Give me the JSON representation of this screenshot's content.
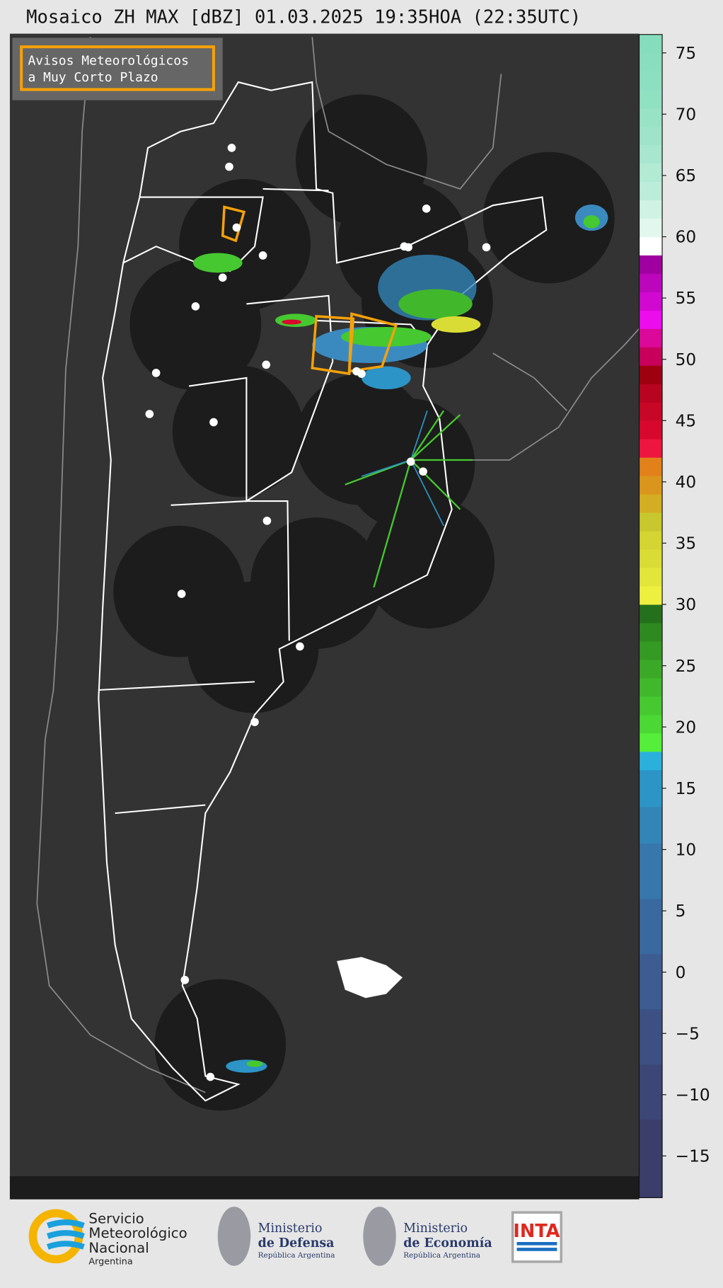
{
  "title": "Mosaico ZH MAX [dBZ] 01.03.2025 19:35HOA (22:35UTC)",
  "legend_box": [
    "Avisos Meteorológicos",
    "a Muy Corto Plazo"
  ],
  "colorbar": {
    "bounds": [
      -18.4,
      -12,
      -7.5,
      -3,
      1.5,
      6,
      10.5,
      13.5,
      16.5,
      18,
      19.5,
      21,
      22.5,
      24,
      25.5,
      27,
      28.5,
      30,
      31.5,
      33,
      34.5,
      36,
      37.5,
      39,
      40.5,
      42,
      43.5,
      45,
      46.5,
      48,
      49.5,
      51,
      52.5,
      54,
      55.5,
      57,
      58.5,
      60,
      61.5,
      63,
      64.5,
      66,
      67.5,
      69,
      70.5,
      72,
      73.5,
      75,
      76.5
    ],
    "colors": [
      "#3b3d6b",
      "#3c4677",
      "#3d5084",
      "#3c5c92",
      "#3a699f",
      "#3777ab",
      "#3385b8",
      "#2c94c6",
      "#2bb0dc",
      "#55ee3a",
      "#4cd834",
      "#46c830",
      "#41b82b",
      "#3ba927",
      "#349a23",
      "#2e8a20",
      "#25701c",
      "#eef040",
      "#e2e63a",
      "#dadc36",
      "#d4d432",
      "#c8c82e",
      "#d4ae22",
      "#da961c",
      "#e2801a",
      "#ee1640",
      "#d8082c",
      "#c80626",
      "#b80420",
      "#9e0010",
      "#c8005c",
      "#dc089a",
      "#ec0cec",
      "#d008d0",
      "#bc06bc",
      "#a000a0",
      "#ffffff",
      "#e2f7ee",
      "#d0f2e4",
      "#bcecda",
      "#b2ead4",
      "#a8e6cf",
      "#9fe4ca",
      "#98e2c6",
      "#90e0c2",
      "#8cdfc0",
      "#88debe",
      "#86ddbd"
    ],
    "ticks": [
      75,
      70,
      65,
      60,
      55,
      50,
      45,
      40,
      35,
      30,
      25,
      20,
      15,
      10,
      5,
      0,
      {
        "value": -5,
        "label": "−5"
      },
      {
        "value": -10,
        "label": "−10"
      },
      {
        "value": -15,
        "label": "−15"
      }
    ]
  },
  "logos": {
    "smn": [
      "Servicio",
      "Meteorológico",
      "Nacional",
      "Argentina"
    ],
    "defensa": [
      "Ministerio",
      "de Defensa",
      "República Argentina"
    ],
    "economia": [
      "Ministerio",
      "de Economía",
      "República Argentina"
    ],
    "inta": "INTA"
  }
}
